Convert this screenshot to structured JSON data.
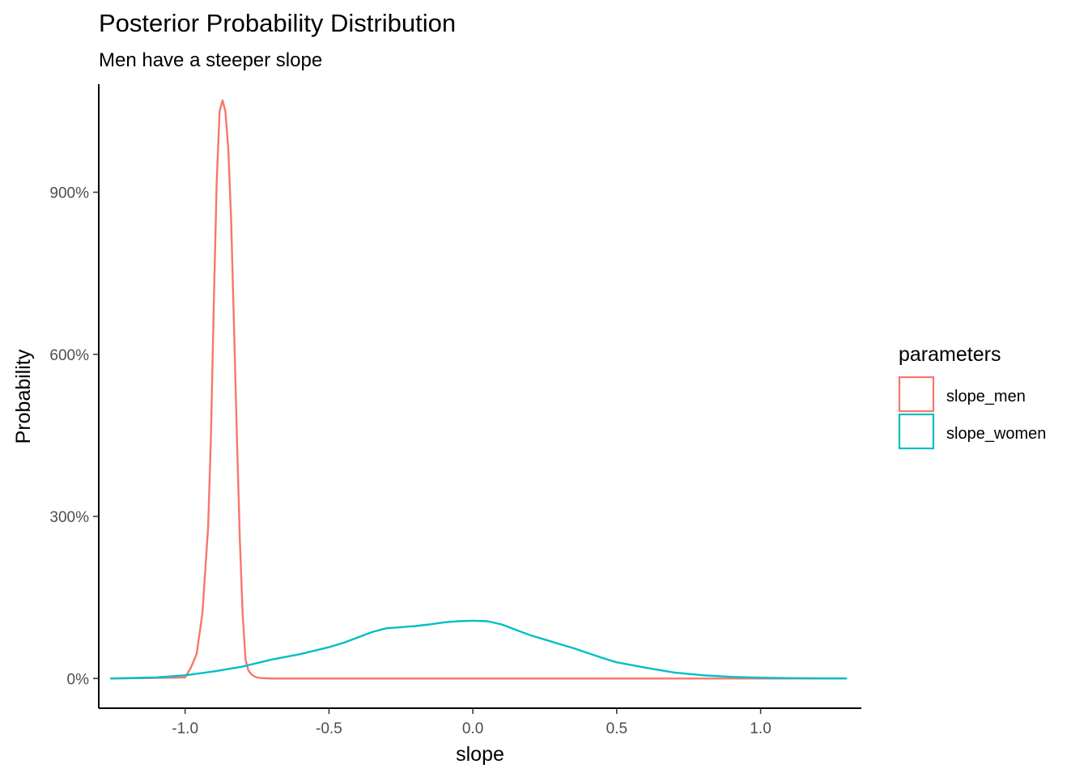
{
  "chart_data": {
    "type": "line",
    "title": "Posterior Probability Distribution",
    "subtitle": "Men have a steeper slope",
    "xlabel": "slope",
    "ylabel": "Probability",
    "xlim": [
      -1.3,
      1.35
    ],
    "ylim": [
      -0.55,
      11.0
    ],
    "x_ticks": [
      -1.0,
      -0.5,
      0.0,
      0.5,
      1.0
    ],
    "x_tick_labels": [
      "-1.0",
      "-0.5",
      "0.0",
      "0.5",
      "1.0"
    ],
    "y_ticks": [
      0,
      3,
      6,
      9
    ],
    "y_tick_labels": [
      "0%",
      "300%",
      "600%",
      "900%"
    ],
    "grid": false,
    "legend": {
      "title": "parameters",
      "placement": "right",
      "entries": [
        "slope_men",
        "slope_women"
      ]
    },
    "series": [
      {
        "name": "slope_men",
        "color": "#F8766D",
        "x": [
          -1.26,
          -1.0,
          -0.98,
          -0.96,
          -0.94,
          -0.92,
          -0.91,
          -0.9,
          -0.89,
          -0.88,
          -0.87,
          -0.86,
          -0.85,
          -0.84,
          -0.83,
          -0.82,
          -0.81,
          -0.8,
          -0.79,
          -0.78,
          -0.77,
          -0.76,
          -0.75,
          -0.74,
          -0.72,
          -0.7,
          -0.68,
          -0.5,
          0.0,
          0.5,
          1.0,
          1.3
        ],
        "y": [
          0,
          0.02,
          0.2,
          0.45,
          1.2,
          2.8,
          4.5,
          7.0,
          9.2,
          10.5,
          10.7,
          10.5,
          9.8,
          8.5,
          6.5,
          4.5,
          2.6,
          1.2,
          0.35,
          0.15,
          0.08,
          0.04,
          0.02,
          0.01,
          0.005,
          0,
          0,
          0,
          0,
          0,
          0,
          0
        ]
      },
      {
        "name": "slope_women",
        "color": "#00BFC4",
        "x": [
          -1.26,
          -1.1,
          -1.0,
          -0.9,
          -0.8,
          -0.7,
          -0.6,
          -0.5,
          -0.45,
          -0.4,
          -0.35,
          -0.3,
          -0.25,
          -0.2,
          -0.15,
          -0.1,
          -0.05,
          0.0,
          0.05,
          0.1,
          0.15,
          0.2,
          0.25,
          0.3,
          0.35,
          0.4,
          0.45,
          0.5,
          0.6,
          0.7,
          0.8,
          0.9,
          1.0,
          1.1,
          1.2,
          1.3
        ],
        "y": [
          0,
          0.02,
          0.06,
          0.13,
          0.22,
          0.35,
          0.45,
          0.58,
          0.66,
          0.76,
          0.86,
          0.93,
          0.95,
          0.97,
          1.0,
          1.04,
          1.06,
          1.07,
          1.06,
          1.0,
          0.9,
          0.8,
          0.72,
          0.64,
          0.56,
          0.47,
          0.38,
          0.3,
          0.2,
          0.11,
          0.06,
          0.03,
          0.015,
          0.007,
          0.003,
          0.001
        ]
      }
    ]
  }
}
